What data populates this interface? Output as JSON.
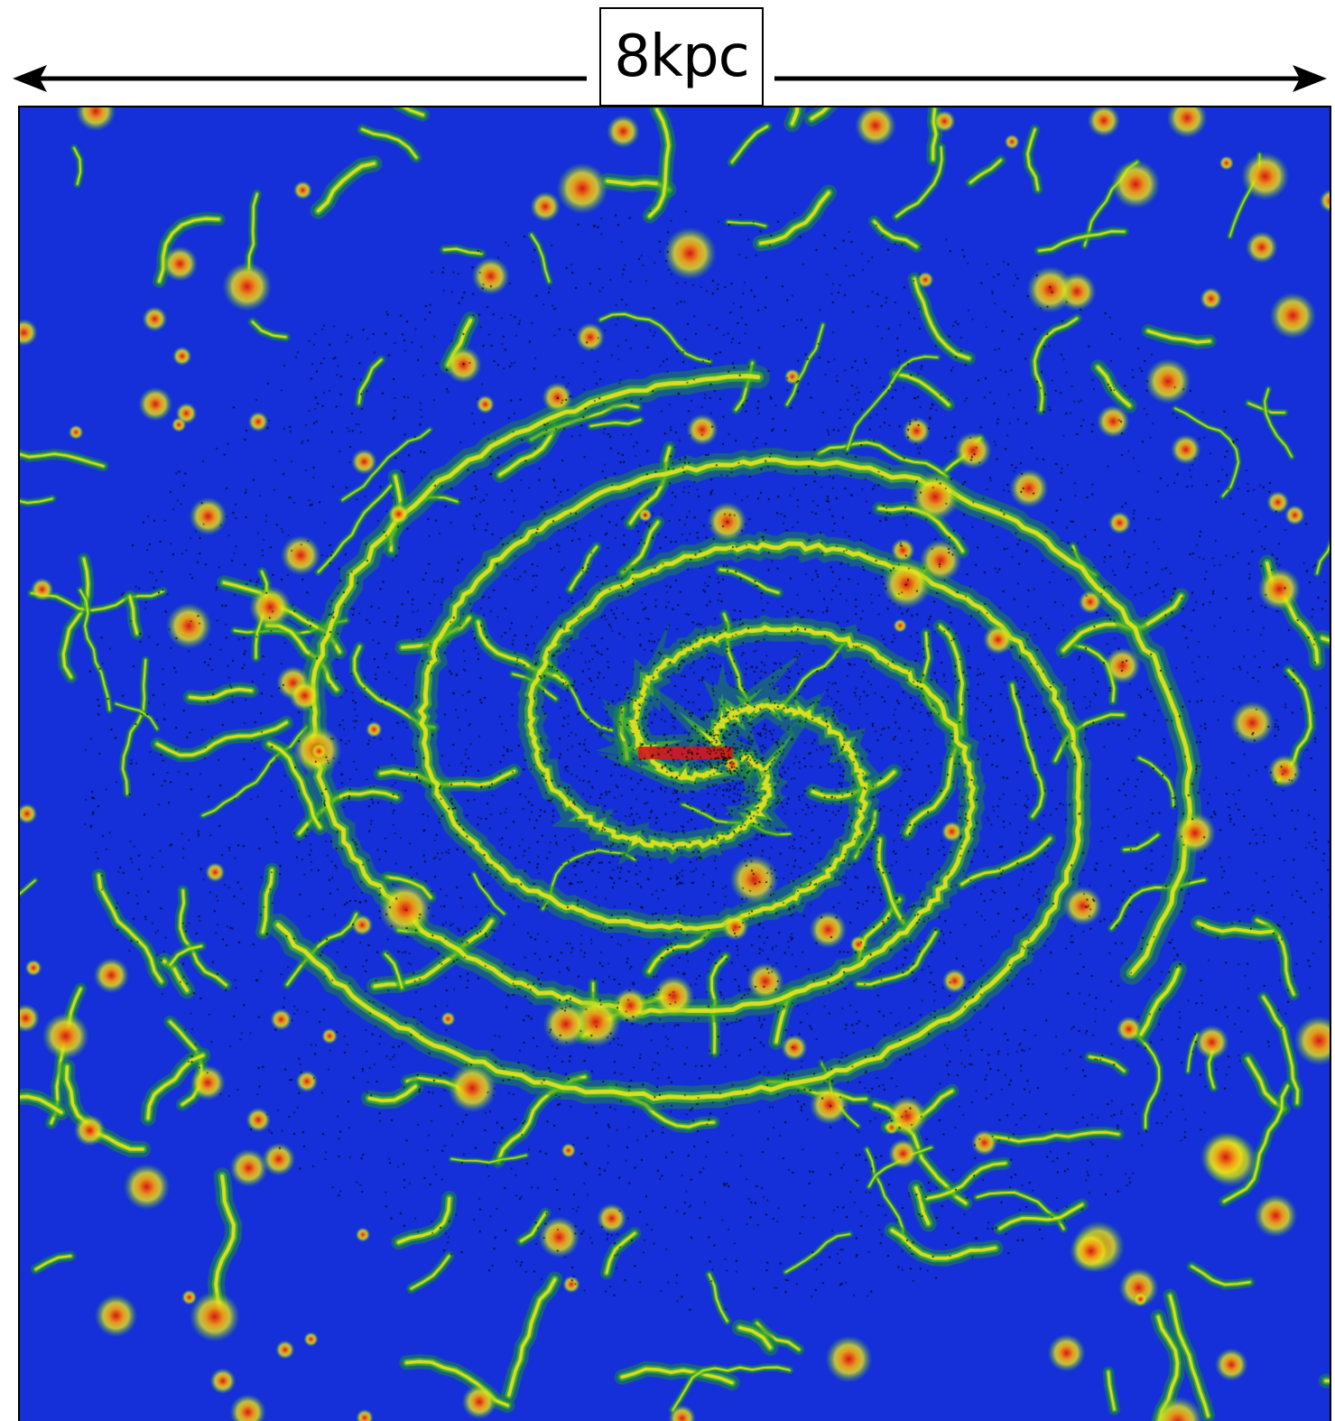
{
  "scale_bar": {
    "label": "8kpc"
  },
  "image": {
    "description_colors": {
      "void": "#5a1250",
      "background": "#1530d8",
      "filament": "#1f8f2a",
      "dense": "#e6e61a",
      "core": "#d81818",
      "stars": "#000000"
    }
  }
}
